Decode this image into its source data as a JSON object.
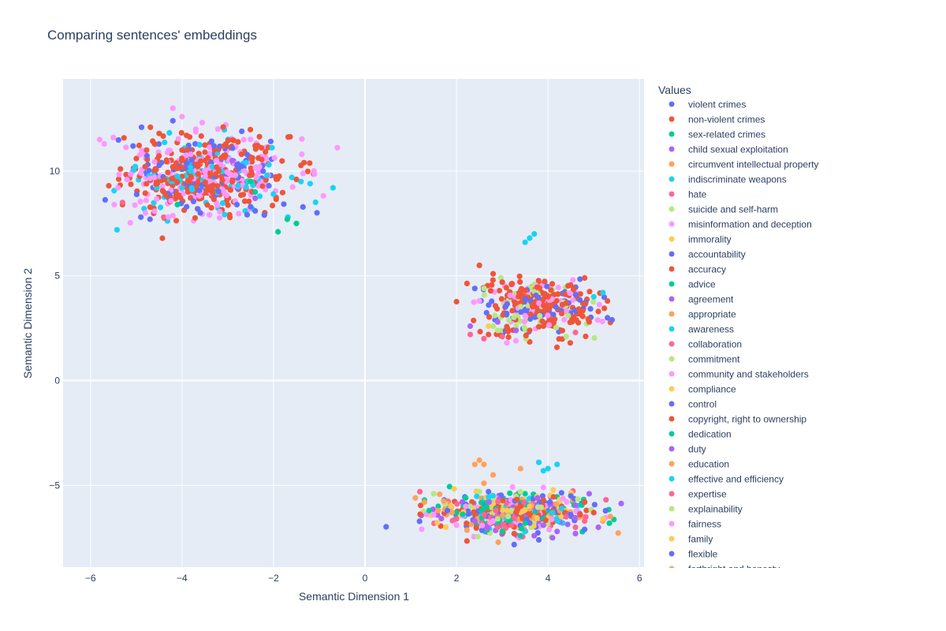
{
  "chart_data": {
    "type": "scatter",
    "title": "Comparing sentences' embeddings",
    "xlabel": "Semantic Dimension 1",
    "ylabel": "Semantic Dimension 2",
    "xlim": [
      -6.6,
      6.1
    ],
    "ylim": [
      -8.9,
      14.4
    ],
    "x_ticks": [
      -6,
      -4,
      -2,
      0,
      2,
      4,
      6
    ],
    "y_ticks": [
      -5,
      0,
      5,
      10
    ],
    "grid": true,
    "legend_title": "Values",
    "legend_placement": "right",
    "plot_bg": "#e5ecf6",
    "clusters": [
      {
        "name": "upper-left",
        "center": [
          -3.5,
          9.8
        ],
        "spread": [
          1.2,
          1.2
        ]
      },
      {
        "name": "middle-right",
        "center": [
          3.8,
          3.5
        ],
        "spread": [
          0.8,
          0.9
        ]
      },
      {
        "name": "lower-right",
        "center": [
          3.2,
          -6.3
        ],
        "spread": [
          1.1,
          0.6
        ]
      }
    ],
    "series": [
      {
        "name": "violent crimes",
        "color": "#636efa",
        "x": [
          -4.9,
          -4.7,
          -3.9,
          -3.6,
          -2.8,
          -2.4,
          -2.1,
          -4.2,
          -3.3,
          -2.6,
          2.4,
          3.1,
          4.6,
          5.3,
          2.2,
          3.6,
          4.8
        ],
        "y": [
          7.8,
          7.7,
          8.3,
          8.0,
          8.4,
          8.1,
          9.3,
          12.4,
          11.2,
          10.5,
          4.4,
          3.2,
          4.1,
          3.0,
          -5.9,
          -6.8,
          -7.1
        ]
      },
      {
        "name": "non-violent crimes",
        "color": "#ef553b",
        "x": [
          -5.6,
          -5.0,
          -4.6,
          -4.2,
          -3.9,
          -3.5,
          -3.1,
          -2.9,
          -2.7,
          -3.8,
          -4.4,
          -5.3,
          -3.2,
          -4.0,
          2.5,
          2.8,
          3.2,
          3.5,
          4.0,
          4.4,
          4.8,
          5.1,
          5.3,
          4.6,
          3.9,
          2.7,
          3.6,
          4.3,
          4.9,
          3.9,
          4.3,
          4.8,
          4.1,
          3.4,
          4.7
        ],
        "y": [
          9.3,
          10.6,
          11.3,
          10.2,
          11.7,
          10.9,
          12.1,
          9.5,
          10.8,
          9.7,
          9.0,
          8.4,
          10.0,
          11.0,
          5.5,
          5.1,
          4.6,
          4.3,
          4.0,
          3.7,
          4.9,
          3.3,
          3.8,
          2.9,
          2.6,
          2.2,
          2.4,
          3.2,
          2.8,
          -5.7,
          -6.0,
          -5.8,
          -6.2,
          -6.0,
          -6.4
        ]
      },
      {
        "name": "sex-related crimes",
        "color": "#00cc96",
        "x": [
          -1.9,
          -1.7,
          -1.5,
          -4.1,
          -2.4,
          1.3,
          1.6,
          2.0,
          2.6,
          3.0,
          3.4,
          2.2,
          2.9
        ],
        "y": [
          7.1,
          7.7,
          7.5,
          8.4,
          9.0,
          -5.7,
          -6.0,
          -6.3,
          -6.1,
          -7.2,
          -7.4,
          -5.6,
          -6.8
        ]
      },
      {
        "name": "child sexual exploitation",
        "color": "#ab63fa",
        "x": [
          -2.9,
          -2.4,
          2.9,
          3.3,
          3.7,
          4.1,
          4.6,
          5.1,
          3.9
        ],
        "y": [
          10.5,
          8.7,
          2.8,
          2.4,
          -7.4,
          -7.5,
          -7.3,
          -7.0,
          -6.9
        ]
      },
      {
        "name": "circumvent intellectual property",
        "color": "#ffa15a",
        "x": [
          1.1,
          1.3,
          1.6,
          2.5,
          2.6,
          2.8,
          3.4,
          3.8,
          5.2
        ],
        "y": [
          -5.6,
          -5.8,
          -6.2,
          -3.8,
          -4.0,
          -4.5,
          -4.2,
          -3.9,
          -6.7
        ]
      },
      {
        "name": "indiscriminate weapons",
        "color": "#19d3f3",
        "x": [
          -2.1,
          -2.3,
          -2.0,
          -1.6,
          -1.4,
          -1.2,
          -0.7,
          3.6,
          3.5,
          3.7,
          5.2,
          5.0,
          3.8,
          4.0,
          4.3
        ],
        "y": [
          10.3,
          8.8,
          8.9,
          9.7,
          9.5,
          9.4,
          9.2,
          6.8,
          6.6,
          7.0,
          4.2,
          4.0,
          -3.9,
          -4.2,
          -6.1
        ]
      },
      {
        "name": "hate",
        "color": "#ff6692",
        "x": [
          -5.3,
          -4.4,
          2.3,
          2.6,
          3.0,
          4.6,
          2.0,
          2.6,
          3.2,
          4.4
        ],
        "y": [
          8.5,
          7.8,
          2.2,
          2.0,
          2.1,
          2.3,
          -6.6,
          -6.4,
          -6.9,
          -6.5
        ]
      },
      {
        "name": "suicide and self-harm",
        "color": "#b6e880",
        "x": [
          2.6,
          2.8,
          2.9,
          4.4,
          2.3,
          2.5
        ],
        "y": [
          4.4,
          2.6,
          2.4,
          2.1,
          -6.0,
          -5.3
        ]
      },
      {
        "name": "misinformation and deception",
        "color": "#ff97ff",
        "x": [
          -5.8,
          -5.7,
          -5.5,
          -5.2,
          -4.9,
          -4.6,
          -4.2,
          -4.0,
          -3.7,
          -4.8,
          -5.4,
          -4.3,
          3.1,
          3.3,
          3.5,
          3.8,
          1.5,
          2.8
        ],
        "y": [
          11.5,
          11.3,
          11.6,
          9.6,
          9.9,
          9.7,
          13.0,
          12.6,
          12.0,
          8.0,
          9.2,
          7.8,
          1.8,
          1.9,
          3.1,
          3.7,
          -6.4,
          -6.7
        ]
      },
      {
        "name": "immorality",
        "color": "#fecb52",
        "x": [
          2.7,
          3.1
        ],
        "y": [
          2.6,
          -6.2
        ]
      },
      {
        "name": "accountability",
        "color": "#636efa",
        "x": [
          -2.5,
          -2.2,
          5.4,
          3.8
        ],
        "y": [
          8.3,
          7.9,
          2.9,
          -7.6
        ]
      },
      {
        "name": "accuracy",
        "color": "#ef553b",
        "x": [
          -3.4,
          3.0,
          5.0
        ],
        "y": [
          9.1,
          4.7,
          -6.3
        ]
      },
      {
        "name": "advice",
        "color": "#00cc96",
        "x": [
          -2.5,
          3.5
        ],
        "y": [
          9.5,
          -5.4
        ]
      },
      {
        "name": "agreement",
        "color": "#ab63fa",
        "x": [
          2.3,
          4.9
        ],
        "y": [
          2.6,
          -5.4
        ]
      },
      {
        "name": "appropriate",
        "color": "#ffa15a",
        "x": [
          1.9
        ],
        "y": [
          -6.3
        ]
      },
      {
        "name": "awareness",
        "color": "#19d3f3",
        "x": [
          -2.6,
          4.2
        ],
        "y": [
          10.4,
          -4.0
        ]
      },
      {
        "name": "collaboration",
        "color": "#ff6692",
        "x": [
          1.2,
          4.8
        ],
        "y": [
          -5.3,
          -6.7
        ]
      },
      {
        "name": "commitment",
        "color": "#b6e880",
        "x": [
          1.5,
          2.9
        ],
        "y": [
          -5.4,
          -6.6
        ]
      },
      {
        "name": "community and stakeholders",
        "color": "#ff97ff",
        "x": [
          -3.4,
          2.2
        ],
        "y": [
          7.9,
          -6.0
        ]
      },
      {
        "name": "compliance",
        "color": "#fecb52",
        "x": [
          3.6
        ],
        "y": [
          -6.0
        ]
      },
      {
        "name": "control",
        "color": "#636efa",
        "x": [
          2.7,
          4.5
        ],
        "y": [
          -5.3,
          -6.4
        ]
      },
      {
        "name": "copyright, right to ownership",
        "color": "#ef553b",
        "x": [
          -1.5,
          3.3
        ],
        "y": [
          9.6,
          -6.3
        ]
      },
      {
        "name": "dedication",
        "color": "#00cc96",
        "x": [
          1.4,
          3.5
        ],
        "y": [
          -6.2,
          -6.8
        ]
      },
      {
        "name": "duty",
        "color": "#ab63fa",
        "x": [
          2.4,
          4.2
        ],
        "y": [
          -6.7,
          -7.2
        ]
      },
      {
        "name": "education",
        "color": "#ffa15a",
        "x": [
          2.4
        ],
        "y": [
          -4.0
        ]
      },
      {
        "name": "effective and efficiency",
        "color": "#19d3f3",
        "x": [
          3.9,
          4.1
        ],
        "y": [
          -4.3,
          -6.3
        ]
      },
      {
        "name": "expertise",
        "color": "#ff6692",
        "x": [
          2.9,
          4.6
        ],
        "y": [
          -7.0,
          -7.0
        ]
      },
      {
        "name": "explainability",
        "color": "#b6e880",
        "x": [
          3.4
        ],
        "y": [
          -5.3
        ]
      },
      {
        "name": "fairness",
        "color": "#ff97ff",
        "x": [
          2.0,
          3.9
        ],
        "y": [
          -6.9,
          -5.1
        ]
      },
      {
        "name": "family",
        "color": "#fecb52",
        "x": [
          5.2
        ],
        "y": [
          -6.6
        ]
      },
      {
        "name": "flexible",
        "color": "#636efa",
        "x": [
          1.8,
          4.5
        ],
        "y": [
          -6.2,
          -5.5
        ]
      },
      {
        "name": "forthright and honesty",
        "color": "#ffa15a",
        "x": [
          2.6
        ],
        "y": [
          -4.9
        ]
      }
    ]
  }
}
